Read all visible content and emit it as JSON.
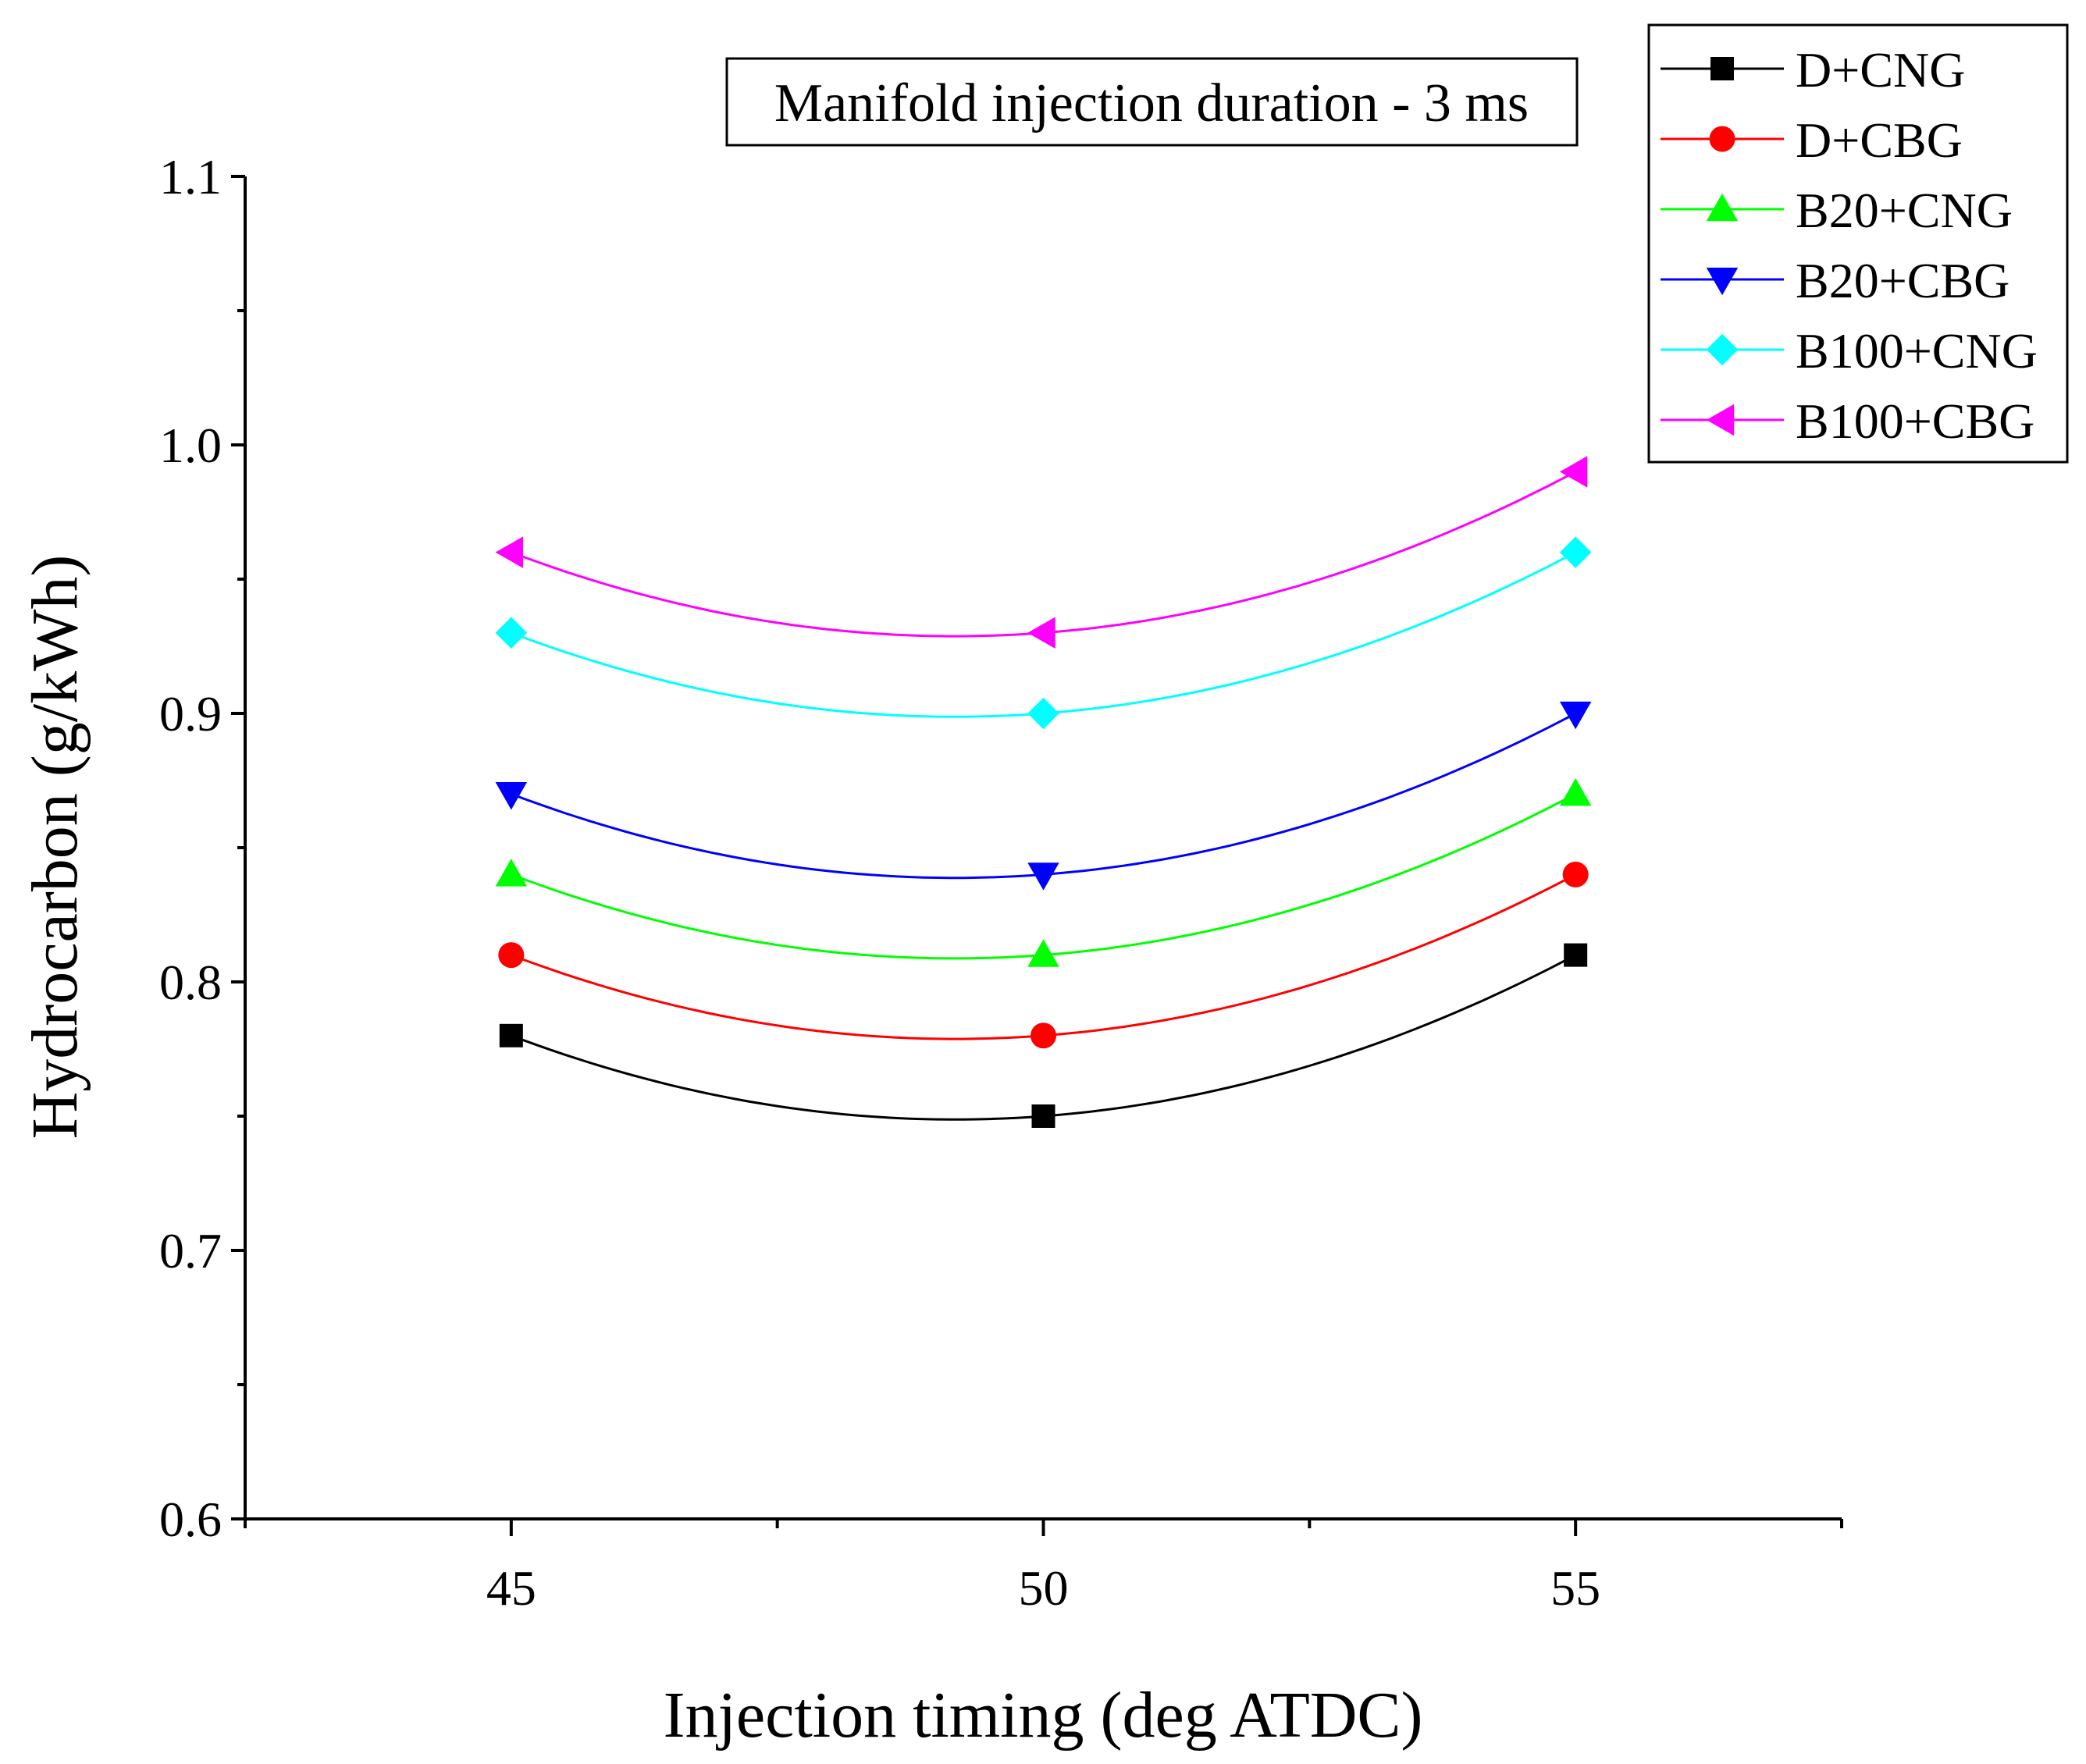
{
  "chart_data": {
    "type": "line",
    "annotation": "Manifold injection duration - 3 ms",
    "xlabel": "Injection timing (deg ATDC)",
    "ylabel": "Hydrocarbon (g/kWh)",
    "x": [
      45,
      50,
      55
    ],
    "xlim": [
      42.5,
      57.5
    ],
    "ylim": [
      0.6,
      1.1
    ],
    "x_ticks": [
      45,
      50,
      55
    ],
    "x_tick_labels": [
      "45",
      "50",
      "55"
    ],
    "y_ticks": [
      0.6,
      0.7,
      0.8,
      0.9,
      1.0,
      1.1
    ],
    "y_tick_labels": [
      "0.6",
      "0.7",
      "0.8",
      "0.9",
      "1.0",
      "1.1"
    ],
    "grid": false,
    "legend_position": "top-right",
    "smoothed": true,
    "series": [
      {
        "name": "D+CNG",
        "values": [
          0.78,
          0.75,
          0.81
        ],
        "color": "#000000",
        "marker": "square"
      },
      {
        "name": "D+CBG",
        "values": [
          0.81,
          0.78,
          0.84
        ],
        "color": "#ff0000",
        "marker": "circle"
      },
      {
        "name": "B20+CNG",
        "values": [
          0.84,
          0.81,
          0.87
        ],
        "color": "#00ff00",
        "marker": "triangle-up"
      },
      {
        "name": "B20+CBG",
        "values": [
          0.87,
          0.84,
          0.9
        ],
        "color": "#0000ff",
        "marker": "triangle-down"
      },
      {
        "name": "B100+CNG",
        "values": [
          0.93,
          0.9,
          0.96
        ],
        "color": "#00ffff",
        "marker": "diamond"
      },
      {
        "name": "B100+CBG",
        "values": [
          0.96,
          0.93,
          0.99
        ],
        "color": "#ff00ff",
        "marker": "triangle-left"
      }
    ]
  }
}
